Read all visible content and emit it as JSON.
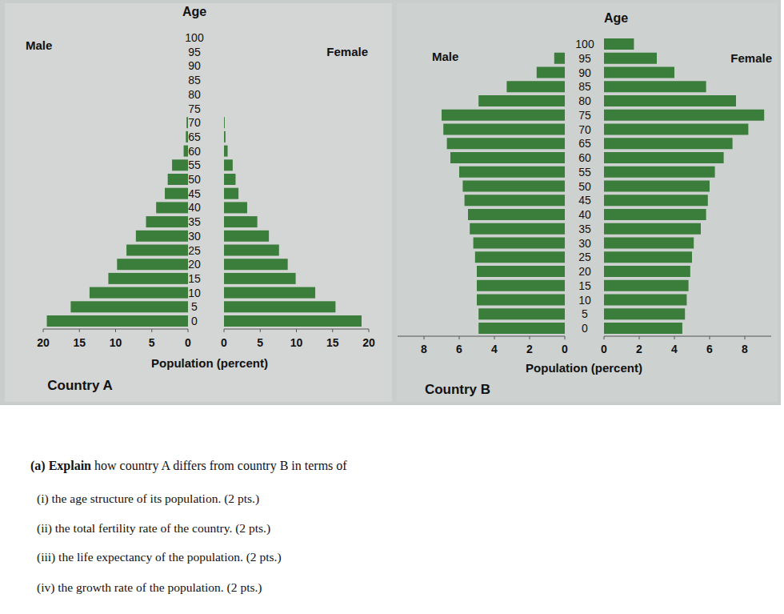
{
  "chart_data": [
    {
      "type": "bar",
      "orientation": "horizontal",
      "title": "Country A",
      "y_label": "Age",
      "x_label": "Population (percent)",
      "categories": [
        0,
        5,
        10,
        15,
        20,
        25,
        30,
        35,
        40,
        45,
        50,
        55,
        60,
        65,
        70,
        75,
        80,
        85,
        90,
        95,
        100
      ],
      "series": [
        {
          "name": "Male",
          "color": "#3b7d3b",
          "values": [
            19.5,
            16.2,
            13.6,
            11.0,
            9.8,
            8.5,
            7.2,
            5.8,
            4.4,
            3.2,
            2.8,
            2.2,
            0.6,
            0.3,
            0.2,
            0,
            0,
            0,
            0,
            0,
            0
          ]
        },
        {
          "name": "Female",
          "color": "#3b7d3b",
          "values": [
            19.0,
            15.4,
            12.6,
            9.9,
            8.8,
            7.6,
            6.2,
            4.6,
            3.2,
            2.0,
            1.6,
            1.2,
            0.5,
            0.2,
            0.1,
            0,
            0,
            0,
            0,
            0,
            0
          ]
        }
      ],
      "xlim": [
        0,
        20
      ],
      "xticks": [
        0,
        5,
        10,
        15,
        20
      ]
    },
    {
      "type": "bar",
      "orientation": "horizontal",
      "title": "Country B",
      "y_label": "Age",
      "x_label": "Population (percent)",
      "categories": [
        0,
        5,
        10,
        15,
        20,
        25,
        30,
        35,
        40,
        45,
        50,
        55,
        60,
        65,
        70,
        75,
        80,
        85,
        90,
        95,
        100
      ],
      "series": [
        {
          "name": "Male",
          "color": "#3b7d3b",
          "values": [
            4.9,
            4.9,
            5.0,
            5.0,
            5.0,
            5.1,
            5.2,
            5.4,
            5.5,
            5.7,
            5.8,
            6.0,
            6.5,
            6.7,
            6.9,
            7.0,
            4.9,
            3.3,
            1.6,
            0.6,
            0
          ]
        },
        {
          "name": "Female",
          "color": "#3b7d3b",
          "values": [
            4.45,
            4.6,
            4.7,
            4.8,
            4.9,
            5.0,
            5.1,
            5.5,
            5.8,
            5.9,
            6.0,
            6.3,
            6.8,
            7.3,
            8.2,
            9.1,
            7.5,
            5.8,
            4.0,
            3.0,
            1.7
          ]
        }
      ],
      "xlim": [
        0,
        9.5
      ],
      "xticks": [
        0,
        2,
        4,
        6,
        8
      ]
    }
  ],
  "document": {
    "lead_bold": "(a) Explain",
    "lead": " how country A differs from country B in terms of",
    "items": [
      "(i) the age structure of its population. (2 pts.)",
      "(ii) the total fertility rate of the country. (2 pts.)",
      "(iii) the life expectancy of the population. (2 pts.)",
      "(iv) the growth rate of the population. (2 pts.)"
    ]
  }
}
